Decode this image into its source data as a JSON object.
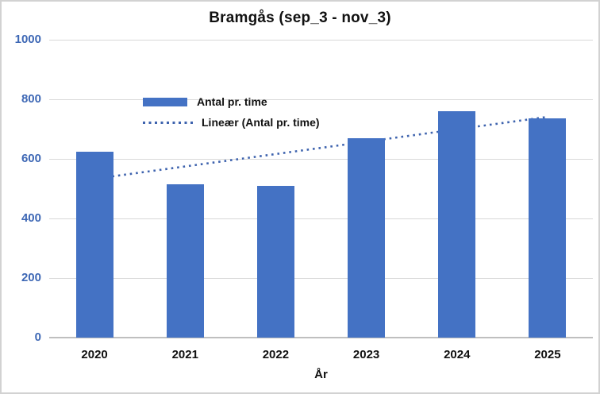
{
  "title": "Bramgås (sep_3 - nov_3)",
  "legend": {
    "items": [
      {
        "label": "Antal pr. time",
        "swatch": "bar-swatch"
      },
      {
        "label": "Lineær (Antal pr. time)",
        "swatch": "dotted-line-swatch"
      }
    ]
  },
  "colors": {
    "bar": "#4472C4",
    "trendline": "#3E63AE",
    "y_axis_label": "#3E68B5",
    "gridline": "#d9d9d9",
    "axis_line": "#bfbfbf",
    "text": "#111111",
    "frame_border": "#d2d2d2"
  },
  "chart_data": {
    "type": "bar",
    "title": "Bramgås (sep_3 - nov_3)",
    "categories": [
      "2020",
      "2021",
      "2022",
      "2023",
      "2024",
      "2025"
    ],
    "series": [
      {
        "name": "Antal pr. time",
        "values": [
          625,
          515,
          510,
          670,
          760,
          735
        ]
      }
    ],
    "trendline": {
      "name": "Lineær (Antal pr. time)",
      "style": "dotted",
      "start_value": 533,
      "end_value": 741
    },
    "xlabel": "År",
    "ylabel": "",
    "ylim": [
      0,
      1000
    ],
    "yticks": [
      0,
      200,
      400,
      600,
      800,
      1000
    ],
    "grid": true,
    "legend_position": "inside-top-left"
  }
}
